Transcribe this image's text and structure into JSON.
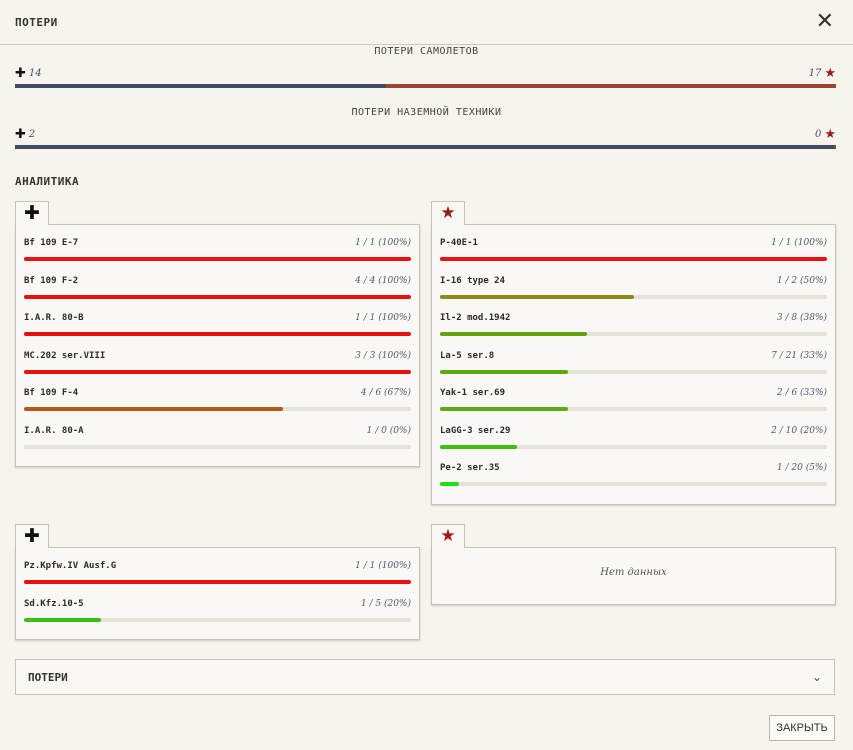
{
  "header": {
    "title": "ПОТЕРИ",
    "close_icon": "close-icon"
  },
  "aircraft_losses": {
    "caption": "ПОТЕРИ САМОЛЕТОВ",
    "left_value": "14",
    "right_value": "17",
    "left_share": 0.4516,
    "left_color": "#3e4b63",
    "right_color": "#9b4532"
  },
  "ground_losses": {
    "caption": "ПОТЕРИ НАЗЕМНОЙ ТЕХНИКИ",
    "left_value": "2",
    "right_value": "0",
    "left_share": 0.997
  },
  "analytics": {
    "title": "АНАЛИТИКА",
    "axis_aircraft": {
      "icon": "cross-icon",
      "rows": [
        {
          "name": "Bf 109 E-7",
          "value": "1 / 1 (100%)",
          "fraction": 1.0,
          "color": "#e8110f"
        },
        {
          "name": "Bf 109 F-2",
          "value": "4 / 4 (100%)",
          "fraction": 1.0,
          "color": "#e8110f"
        },
        {
          "name": "I.A.R. 80-B",
          "value": "1 / 1 (100%)",
          "fraction": 1.0,
          "color": "#e8110f"
        },
        {
          "name": "MC.202 ser.VIII",
          "value": "3 / 3 (100%)",
          "fraction": 1.0,
          "color": "#e8110f"
        },
        {
          "name": "Bf 109 F-4",
          "value": "4 / 6 (67%)",
          "fraction": 0.67,
          "color": "#b5591a"
        },
        {
          "name": "I.A.R. 80-A",
          "value": "1 / 0 (0%)",
          "fraction": 0.0,
          "color": "#e8110f"
        }
      ]
    },
    "allied_aircraft": {
      "icon": "star-icon",
      "rows": [
        {
          "name": "P-40E-1",
          "value": "1 / 1 (100%)",
          "fraction": 1.0,
          "color": "#e8110f"
        },
        {
          "name": "I-16 type 24",
          "value": "1 / 2 (50%)",
          "fraction": 0.5,
          "color": "#8a8a14"
        },
        {
          "name": "Il-2 mod.1942",
          "value": "3 / 8 (38%)",
          "fraction": 0.38,
          "color": "#63a30f"
        },
        {
          "name": "La-5 ser.8",
          "value": "7 / 21 (33%)",
          "fraction": 0.33,
          "color": "#5aab0e"
        },
        {
          "name": "Yak-1 ser.69",
          "value": "2 / 6 (33%)",
          "fraction": 0.33,
          "color": "#5aab0e"
        },
        {
          "name": "LaGG-3 ser.29",
          "value": "2 / 10 (20%)",
          "fraction": 0.2,
          "color": "#3cbf10"
        },
        {
          "name": "Pe-2 ser.35",
          "value": "1 / 20 (5%)",
          "fraction": 0.05,
          "color": "#1ee012"
        }
      ]
    },
    "axis_ground": {
      "icon": "cross-icon",
      "rows": [
        {
          "name": "Pz.Kpfw.IV Ausf.G",
          "value": "1 / 1 (100%)",
          "fraction": 1.0,
          "color": "#e8110f"
        },
        {
          "name": "Sd.Kfz.10-5",
          "value": "1 / 5 (20%)",
          "fraction": 0.2,
          "color": "#3cbf10"
        }
      ]
    },
    "allied_ground": {
      "icon": "star-icon",
      "empty_text": "Нет данных"
    }
  },
  "accordion": {
    "label": "ПОТЕРИ",
    "icon": "chevron-down-icon"
  },
  "footer": {
    "close_label": "ЗАКРЫТЬ"
  }
}
